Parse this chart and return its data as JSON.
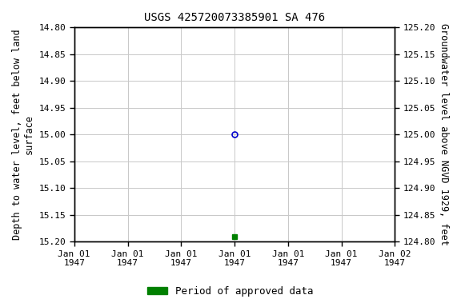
{
  "title": "USGS 425720073385901 SA 476",
  "ylabel_left": "Depth to water level, feet below land\nsurface",
  "ylabel_right": "Groundwater level above NGVD 1929, feet",
  "ylim_left_top": 14.8,
  "ylim_left_bottom": 15.2,
  "ylim_right_top": 125.2,
  "ylim_right_bottom": 124.8,
  "yticks_left": [
    14.8,
    14.85,
    14.9,
    14.95,
    15.0,
    15.05,
    15.1,
    15.15,
    15.2
  ],
  "yticks_right": [
    125.2,
    125.15,
    125.1,
    125.05,
    125.0,
    124.95,
    124.9,
    124.85,
    124.8
  ],
  "xlim": [
    -3,
    3
  ],
  "xtick_positions": [
    -3,
    -2,
    -1,
    0,
    1,
    2,
    3
  ],
  "xtick_labels": [
    "Jan 01\n1947",
    "Jan 01\n1947",
    "Jan 01\n1947",
    "Jan 01\n1947",
    "Jan 01\n1947",
    "Jan 01\n1947",
    "Jan 02\n1947"
  ],
  "point_x": 0,
  "point_y_circle": 15.0,
  "point_y_square": 15.19,
  "circle_color": "#0000cc",
  "square_color": "#008000",
  "bg_color": "#ffffff",
  "grid_color": "#c8c8c8",
  "title_fontsize": 10,
  "axis_label_fontsize": 8.5,
  "tick_fontsize": 8,
  "legend_label": "Period of approved data",
  "legend_fontsize": 9
}
